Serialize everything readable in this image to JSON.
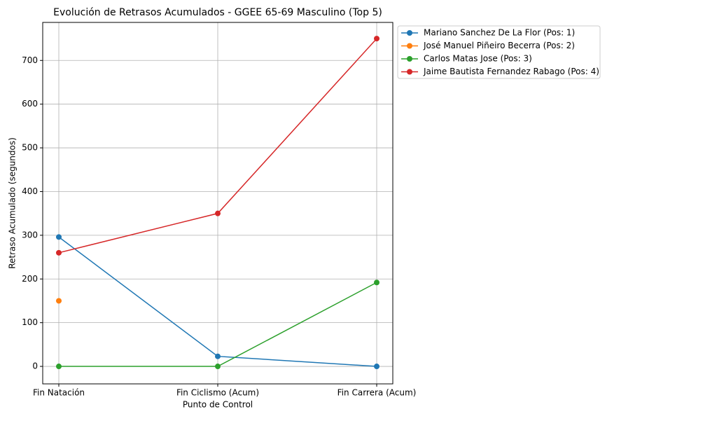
{
  "chart_data": {
    "type": "line",
    "title": "Evolución de Retrasos Acumulados - GGEE 65-69 Masculino (Top 5)",
    "x_label": "Punto de Control",
    "y_label": "Retraso Acumulado (segundos)",
    "categories": [
      "Fin Natación",
      "Fin Ciclismo (Acum)",
      "Fin Carrera (Acum)"
    ],
    "series": [
      {
        "name": "Mariano Sanchez De La Flor (Pos: 1)",
        "color": "#1f77b4",
        "values": [
          296,
          23,
          0
        ]
      },
      {
        "name": "José Manuel Piñeiro Becerra (Pos: 2)",
        "color": "#ff7f0e",
        "values": [
          150,
          null,
          null
        ]
      },
      {
        "name": "Carlos Matas Jose (Pos: 3)",
        "color": "#2ca02c",
        "values": [
          0,
          0,
          192
        ]
      },
      {
        "name": "Jaime Bautista Fernandez Rabago (Pos: 4)",
        "color": "#d62728",
        "values": [
          260,
          350,
          750
        ]
      }
    ],
    "ylim": [
      -40,
      787
    ],
    "yticks": [
      0,
      100,
      200,
      300,
      400,
      500,
      600,
      700
    ],
    "grid": true,
    "legend": "outside-upper-right"
  }
}
